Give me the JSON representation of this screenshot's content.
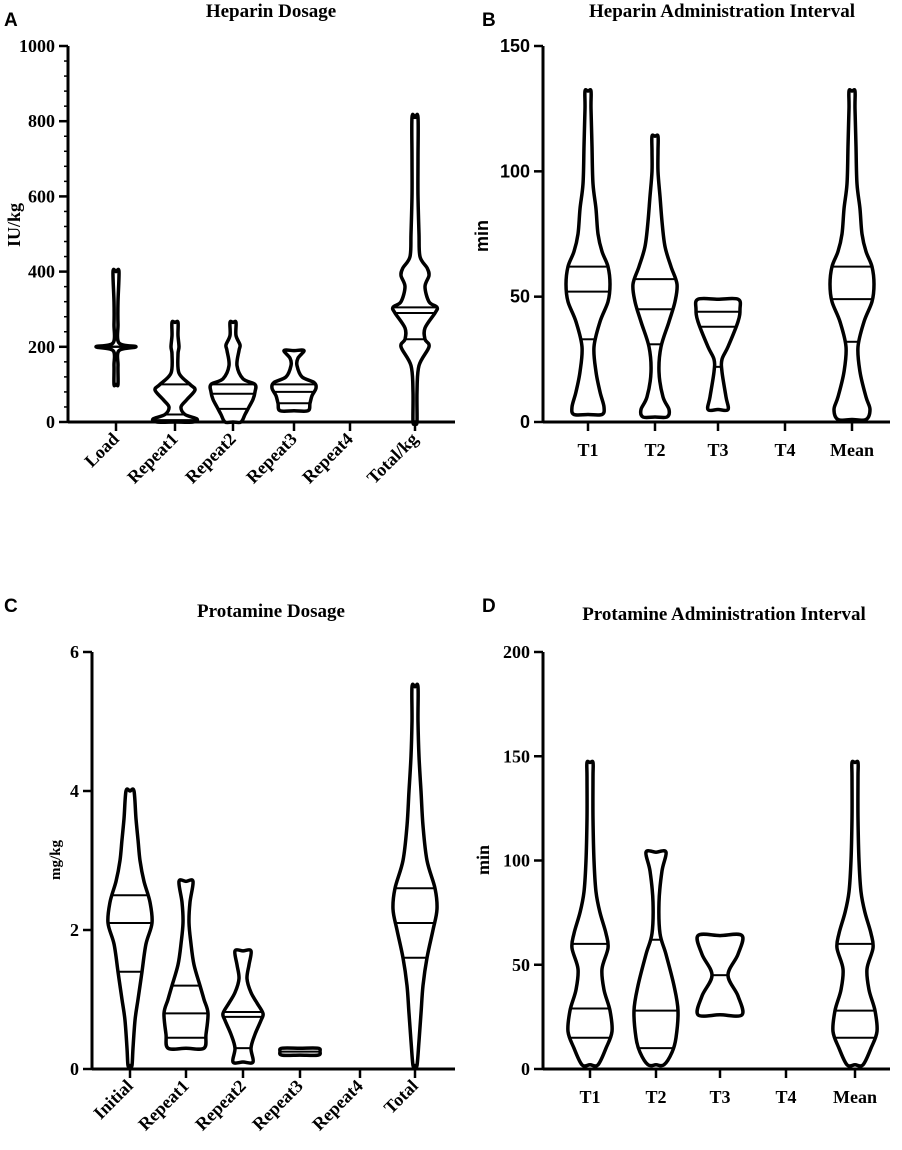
{
  "chart_data": [
    {
      "panel": "A",
      "type": "violin",
      "title": "Heparin Dosage",
      "ylabel": "IU/kg",
      "ylim": [
        0,
        1000
      ],
      "yticks": [
        0,
        200,
        400,
        600,
        800,
        1000
      ],
      "minor_y": true,
      "categories": [
        "Load",
        "Repeat1",
        "Repeat2",
        "Repeat3",
        "Repeat4",
        "Total/kg"
      ],
      "rotate_x": true,
      "series": [
        {
          "name": "Load",
          "profile": [
            [
              100,
              2
            ],
            [
              150,
              2
            ],
            [
              190,
              3
            ],
            [
              200,
              20
            ],
            [
              210,
              3
            ],
            [
              260,
              2
            ],
            [
              320,
              2
            ],
            [
              400,
              3
            ]
          ],
          "quartiles": [
            200,
            200,
            200
          ]
        },
        {
          "name": "Repeat1",
          "profile": [
            [
              0,
              18
            ],
            [
              8,
              22
            ],
            [
              20,
              10
            ],
            [
              40,
              6
            ],
            [
              60,
              12
            ],
            [
              85,
              20
            ],
            [
              100,
              15
            ],
            [
              130,
              4
            ],
            [
              180,
              3
            ],
            [
              200,
              4
            ],
            [
              230,
              3
            ],
            [
              265,
              3
            ]
          ],
          "quartiles": [
            5,
            20,
            100
          ]
        },
        {
          "name": "Repeat2",
          "profile": [
            [
              0,
              8
            ],
            [
              20,
              12
            ],
            [
              40,
              16
            ],
            [
              60,
              20
            ],
            [
              80,
              22
            ],
            [
              100,
              22
            ],
            [
              115,
              10
            ],
            [
              150,
              4
            ],
            [
              190,
              6
            ],
            [
              205,
              7
            ],
            [
              230,
              3
            ],
            [
              265,
              3
            ]
          ],
          "quartiles": [
            35,
            75,
            100
          ]
        },
        {
          "name": "Repeat3",
          "profile": [
            [
              30,
              14
            ],
            [
              50,
              16
            ],
            [
              70,
              18
            ],
            [
              90,
              22
            ],
            [
              105,
              20
            ],
            [
              120,
              8
            ],
            [
              150,
              3
            ],
            [
              170,
              4
            ],
            [
              190,
              10
            ]
          ],
          "quartiles": [
            50,
            80,
            100
          ]
        },
        {
          "name": "Repeat4",
          "profile": [],
          "quartiles": []
        },
        {
          "name": "Total/kg",
          "profile": [
            [
              0,
              2
            ],
            [
              80,
              2
            ],
            [
              150,
              4
            ],
            [
              200,
              14
            ],
            [
              220,
              10
            ],
            [
              250,
              10
            ],
            [
              290,
              20
            ],
            [
              305,
              22
            ],
            [
              320,
              14
            ],
            [
              360,
              10
            ],
            [
              390,
              14
            ],
            [
              410,
              12
            ],
            [
              440,
              5
            ],
            [
              500,
              4
            ],
            [
              600,
              3
            ],
            [
              700,
              3
            ],
            [
              810,
              3
            ]
          ],
          "quartiles": [
            220,
            290,
            305
          ]
        }
      ]
    },
    {
      "panel": "B",
      "type": "violin",
      "title": "Heparin Administration Interval",
      "ylabel": "min",
      "ylim": [
        0,
        150
      ],
      "yticks": [
        0,
        50,
        100,
        150
      ],
      "minor_y": false,
      "categories": [
        "T1",
        "T2",
        "T3",
        "T4",
        "Mean"
      ],
      "rotate_x": false,
      "series": [
        {
          "name": "T1",
          "profile": [
            [
              3,
              14
            ],
            [
              6,
              16
            ],
            [
              12,
              12
            ],
            [
              20,
              8
            ],
            [
              30,
              6
            ],
            [
              40,
              12
            ],
            [
              48,
              20
            ],
            [
              55,
              22
            ],
            [
              62,
              20
            ],
            [
              68,
              14
            ],
            [
              75,
              10
            ],
            [
              85,
              8
            ],
            [
              95,
              5
            ],
            [
              110,
              4
            ],
            [
              125,
              3
            ],
            [
              132,
              3
            ]
          ],
          "quartiles": [
            33,
            52,
            62
          ]
        },
        {
          "name": "T2",
          "profile": [
            [
              2,
              12
            ],
            [
              5,
              14
            ],
            [
              10,
              8
            ],
            [
              20,
              4
            ],
            [
              30,
              6
            ],
            [
              40,
              14
            ],
            [
              48,
              20
            ],
            [
              55,
              22
            ],
            [
              62,
              16
            ],
            [
              70,
              10
            ],
            [
              80,
              7
            ],
            [
              90,
              5
            ],
            [
              100,
              3
            ],
            [
              108,
              3
            ],
            [
              114,
              3
            ]
          ],
          "quartiles": [
            31,
            45,
            57
          ]
        },
        {
          "name": "T3",
          "profile": [
            [
              5,
              10
            ],
            [
              10,
              8
            ],
            [
              20,
              4
            ],
            [
              25,
              4
            ],
            [
              30,
              10
            ],
            [
              40,
              20
            ],
            [
              45,
              22
            ],
            [
              49,
              20
            ]
          ],
          "quartiles": [
            22,
            38,
            44
          ]
        },
        {
          "name": "T4",
          "profile": [],
          "quartiles": []
        },
        {
          "name": "Mean",
          "profile": [
            [
              1,
              14
            ],
            [
              5,
              18
            ],
            [
              10,
              14
            ],
            [
              20,
              8
            ],
            [
              30,
              6
            ],
            [
              40,
              12
            ],
            [
              48,
              20
            ],
            [
              55,
              22
            ],
            [
              62,
              20
            ],
            [
              68,
              14
            ],
            [
              75,
              10
            ],
            [
              85,
              8
            ],
            [
              95,
              5
            ],
            [
              110,
              4
            ],
            [
              125,
              3
            ],
            [
              132,
              3
            ]
          ],
          "quartiles": [
            32,
            49,
            62
          ]
        }
      ]
    },
    {
      "panel": "C",
      "type": "violin",
      "title": "Protamine Dosage",
      "ylabel": "mg/kg",
      "ylim": [
        0,
        6
      ],
      "yticks": [
        0,
        2,
        4,
        6
      ],
      "minor_y": false,
      "categories": [
        "Initial",
        "Repeat1",
        "Repeat2",
        "Repeat3",
        "Repeat4",
        "Total"
      ],
      "rotate_x": true,
      "series": [
        {
          "name": "Initial",
          "profile": [
            [
              0.05,
              2
            ],
            [
              0.3,
              3
            ],
            [
              0.7,
              5
            ],
            [
              1.0,
              8
            ],
            [
              1.4,
              12
            ],
            [
              1.8,
              16
            ],
            [
              2.1,
              22
            ],
            [
              2.4,
              20
            ],
            [
              2.7,
              14
            ],
            [
              3.0,
              10
            ],
            [
              3.3,
              8
            ],
            [
              3.6,
              6
            ],
            [
              4.0,
              4
            ]
          ],
          "quartiles": [
            1.4,
            2.1,
            2.5
          ]
        },
        {
          "name": "Repeat1",
          "profile": [
            [
              0.3,
              18
            ],
            [
              0.5,
              20
            ],
            [
              0.8,
              22
            ],
            [
              1.0,
              18
            ],
            [
              1.2,
              14
            ],
            [
              1.5,
              8
            ],
            [
              1.8,
              5
            ],
            [
              2.1,
              3
            ],
            [
              2.4,
              4
            ],
            [
              2.7,
              7
            ]
          ],
          "quartiles": [
            0.45,
            0.8,
            1.2
          ]
        },
        {
          "name": "Repeat2",
          "profile": [
            [
              0.1,
              10
            ],
            [
              0.3,
              8
            ],
            [
              0.5,
              12
            ],
            [
              0.7,
              18
            ],
            [
              0.8,
              20
            ],
            [
              0.95,
              14
            ],
            [
              1.1,
              8
            ],
            [
              1.3,
              4
            ],
            [
              1.5,
              6
            ],
            [
              1.7,
              8
            ]
          ],
          "quartiles": [
            0.3,
            0.75,
            0.82
          ]
        },
        {
          "name": "Repeat3",
          "profile": [
            [
              0.2,
              18
            ],
            [
              0.25,
              20
            ],
            [
              0.3,
              18
            ]
          ],
          "quartiles": [
            0.25
          ]
        },
        {
          "name": "Repeat4",
          "profile": [],
          "quartiles": []
        },
        {
          "name": "Total",
          "profile": [
            [
              0.05,
              2
            ],
            [
              0.4,
              4
            ],
            [
              0.8,
              6
            ],
            [
              1.2,
              8
            ],
            [
              1.6,
              12
            ],
            [
              2.0,
              18
            ],
            [
              2.3,
              22
            ],
            [
              2.6,
              20
            ],
            [
              3.0,
              12
            ],
            [
              3.5,
              8
            ],
            [
              4.0,
              6
            ],
            [
              4.5,
              4
            ],
            [
              5.0,
              3
            ],
            [
              5.5,
              3
            ]
          ],
          "quartiles": [
            1.6,
            2.1,
            2.6
          ]
        }
      ]
    },
    {
      "panel": "D",
      "type": "violin",
      "title": "Protamine Administration Interval",
      "ylabel": "min",
      "ylim": [
        0,
        200
      ],
      "yticks": [
        0,
        50,
        100,
        150,
        200
      ],
      "minor_y": false,
      "categories": [
        "T1",
        "T2",
        "T3",
        "T4",
        "Mean"
      ],
      "rotate_x": false,
      "series": [
        {
          "name": "T1",
          "profile": [
            [
              2,
              8
            ],
            [
              10,
              16
            ],
            [
              18,
              22
            ],
            [
              28,
              20
            ],
            [
              38,
              14
            ],
            [
              48,
              12
            ],
            [
              58,
              18
            ],
            [
              65,
              16
            ],
            [
              75,
              10
            ],
            [
              85,
              6
            ],
            [
              100,
              4
            ],
            [
              120,
              3
            ],
            [
              140,
              3
            ],
            [
              147,
              3
            ]
          ],
          "quartiles": [
            15,
            29,
            60
          ]
        },
        {
          "name": "T2",
          "profile": [
            [
              2,
              8
            ],
            [
              8,
              16
            ],
            [
              15,
              20
            ],
            [
              28,
              22
            ],
            [
              40,
              18
            ],
            [
              55,
              10
            ],
            [
              65,
              4
            ],
            [
              80,
              3
            ],
            [
              95,
              6
            ],
            [
              104,
              10
            ]
          ],
          "quartiles": [
            10,
            28,
            62
          ]
        },
        {
          "name": "T3",
          "profile": [
            [
              26,
              22
            ],
            [
              35,
              18
            ],
            [
              45,
              8
            ],
            [
              55,
              18
            ],
            [
              64,
              22
            ]
          ],
          "quartiles": [
            45
          ]
        },
        {
          "name": "T4",
          "profile": [],
          "quartiles": []
        },
        {
          "name": "Mean",
          "profile": [
            [
              2,
              8
            ],
            [
              10,
              16
            ],
            [
              18,
              22
            ],
            [
              28,
              20
            ],
            [
              38,
              14
            ],
            [
              48,
              12
            ],
            [
              58,
              18
            ],
            [
              65,
              16
            ],
            [
              75,
              10
            ],
            [
              85,
              6
            ],
            [
              100,
              4
            ],
            [
              120,
              3
            ],
            [
              140,
              3
            ],
            [
              147,
              3
            ]
          ],
          "quartiles": [
            15,
            28,
            60
          ]
        }
      ]
    }
  ],
  "panel_letters": [
    "A",
    "B",
    "C",
    "D"
  ]
}
